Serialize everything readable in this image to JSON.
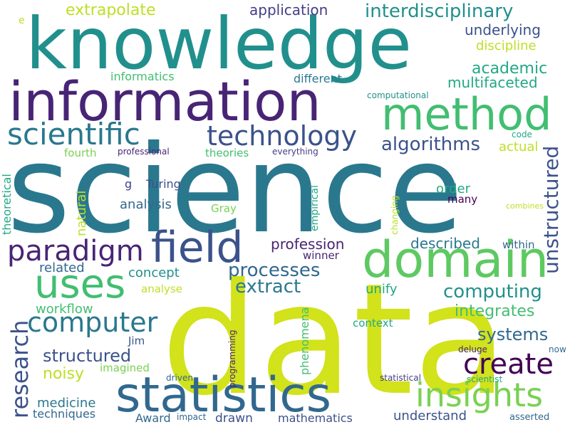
{
  "palette": {
    "background": "#ffffff",
    "dark-purple": "#482475",
    "purple": "#433e85",
    "blue": "#3b528b",
    "slate-blue": "#31688e",
    "teal": "#2a788e",
    "teal-green": "#21908d",
    "green": "#22a884",
    "light-green": "#42be71",
    "lime": "#7ad151",
    "yellow-green": "#bddf26",
    "yellow": "#dde318"
  },
  "words": [
    {
      "text": "science",
      "color": "#2a788e"
    },
    {
      "text": "data",
      "color": "#d2e21b"
    },
    {
      "text": "knowledge",
      "color": "#21908d"
    },
    {
      "text": "information",
      "color": "#482475"
    },
    {
      "text": "method",
      "color": "#42be71"
    },
    {
      "text": "domain",
      "color": "#5ec962"
    },
    {
      "text": "statistics",
      "color": "#31688e"
    },
    {
      "text": "field",
      "color": "#3b528b"
    },
    {
      "text": "uses",
      "color": "#42be71"
    },
    {
      "text": "scientific",
      "color": "#2a788e"
    },
    {
      "text": "technology",
      "color": "#3b528b"
    },
    {
      "text": "paradigm",
      "color": "#482475"
    },
    {
      "text": "insights",
      "color": "#7ad151"
    },
    {
      "text": "computer",
      "color": "#2a788e"
    },
    {
      "text": "create",
      "color": "#440154"
    },
    {
      "text": "research",
      "color": "#3b528b"
    },
    {
      "text": "interdisciplinary",
      "color": "#21908d"
    },
    {
      "text": "algorithms",
      "color": "#3b528b"
    },
    {
      "text": "processes",
      "color": "#31688e"
    },
    {
      "text": "extract",
      "color": "#2a788e"
    },
    {
      "text": "computing",
      "color": "#21908d"
    },
    {
      "text": "academic",
      "color": "#22a884"
    },
    {
      "text": "multifaceted",
      "color": "#22a884"
    },
    {
      "text": "underlying",
      "color": "#3b528b"
    },
    {
      "text": "unstructured",
      "color": "#3b528b"
    },
    {
      "text": "structured",
      "color": "#3b528b"
    },
    {
      "text": "systems",
      "color": "#31688e"
    },
    {
      "text": "integrates",
      "color": "#42be71"
    },
    {
      "text": "application",
      "color": "#433e85"
    },
    {
      "text": "extrapolate",
      "color": "#bddf26"
    },
    {
      "text": "discipline",
      "color": "#bddf26"
    },
    {
      "text": "profession",
      "color": "#482475"
    },
    {
      "text": "described",
      "color": "#2a788e"
    },
    {
      "text": "actual",
      "color": "#bddf26"
    },
    {
      "text": "order",
      "color": "#22a884"
    },
    {
      "text": "analysis",
      "color": "#31688e"
    },
    {
      "text": "concept",
      "color": "#21908d"
    },
    {
      "text": "related",
      "color": "#31688e"
    },
    {
      "text": "noisy",
      "color": "#bddf26"
    },
    {
      "text": "workflow",
      "color": "#42be71"
    },
    {
      "text": "unify",
      "color": "#22a884"
    },
    {
      "text": "medicine",
      "color": "#2a788e"
    },
    {
      "text": "techniques",
      "color": "#31688e"
    },
    {
      "text": "understand",
      "color": "#3b528b"
    },
    {
      "text": "mathematics",
      "color": "#3b528b"
    },
    {
      "text": "drawn",
      "color": "#3b528b"
    },
    {
      "text": "Award",
      "color": "#31688e"
    },
    {
      "text": "informatics",
      "color": "#42be71"
    },
    {
      "text": "different",
      "color": "#2a788e"
    },
    {
      "text": "fourth",
      "color": "#7ad151"
    },
    {
      "text": "theories",
      "color": "#42be71"
    },
    {
      "text": "professional",
      "color": "#482475"
    },
    {
      "text": "everything",
      "color": "#433e85"
    },
    {
      "text": "computational",
      "color": "#21908d"
    },
    {
      "text": "code",
      "color": "#22a884"
    },
    {
      "text": "g",
      "color": "#433e85"
    },
    {
      "text": "Turing",
      "color": "#3b528b"
    },
    {
      "text": "Gray",
      "color": "#7ad151"
    },
    {
      "text": "many",
      "color": "#440154"
    },
    {
      "text": "within",
      "color": "#31688e"
    },
    {
      "text": "winner",
      "color": "#482475"
    },
    {
      "text": "analyse",
      "color": "#bddf26"
    },
    {
      "text": "context",
      "color": "#22a884"
    },
    {
      "text": "Jim",
      "color": "#3b528b"
    },
    {
      "text": "imagined",
      "color": "#7ad151"
    },
    {
      "text": "deluge",
      "color": "#482475"
    },
    {
      "text": "now",
      "color": "#31688e"
    },
    {
      "text": "driven",
      "color": "#31688e"
    },
    {
      "text": "statistical",
      "color": "#433e85"
    },
    {
      "text": "scientist",
      "color": "#22a884"
    },
    {
      "text": "impact",
      "color": "#31688e"
    },
    {
      "text": "asserted",
      "color": "#31688e"
    },
    {
      "text": "combines",
      "color": "#bddf26"
    },
    {
      "text": "e",
      "color": "#bddf26"
    },
    {
      "text": "natural",
      "color": "#bddf26"
    },
    {
      "text": "theoretical",
      "color": "#22a884"
    },
    {
      "text": "empirical",
      "color": "#22a884"
    },
    {
      "text": "phenomena",
      "color": "#42be71"
    },
    {
      "text": "programming",
      "color": "#482475"
    },
    {
      "text": "changing",
      "color": "#bddf26"
    }
  ]
}
